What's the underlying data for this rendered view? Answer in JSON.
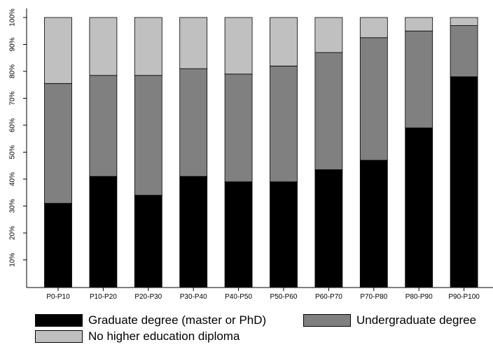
{
  "chart_data": {
    "type": "bar",
    "stacked": true,
    "title": "",
    "xlabel": "",
    "ylabel": "",
    "ylim": [
      0,
      100
    ],
    "yticks": [
      "10%",
      "20%",
      "30%",
      "40%",
      "50%",
      "60%",
      "70%",
      "80%",
      "90%",
      "100%"
    ],
    "grid": false,
    "legend_position": "bottom",
    "categories": [
      "P0-P10",
      "P10-P20",
      "P20-P30",
      "P30-P40",
      "P40-P50",
      "P50-P60",
      "P60-P70",
      "P70-P80",
      "P80-P90",
      "P90-P100"
    ],
    "series": [
      {
        "name": "Graduate degree (master or PhD)",
        "color": "#000000",
        "values": [
          31,
          41,
          34,
          41,
          39,
          39,
          43.5,
          47,
          59,
          78
        ]
      },
      {
        "name": "Undergraduate degree",
        "color": "#808080",
        "values": [
          44.5,
          37.5,
          44.5,
          40,
          40,
          43,
          43.5,
          45.5,
          36,
          19
        ]
      },
      {
        "name": "No higher education diploma",
        "color": "#c0c0c0",
        "values": [
          24.5,
          21.5,
          21.5,
          19,
          21,
          18,
          13,
          7.5,
          5,
          3
        ]
      }
    ]
  }
}
